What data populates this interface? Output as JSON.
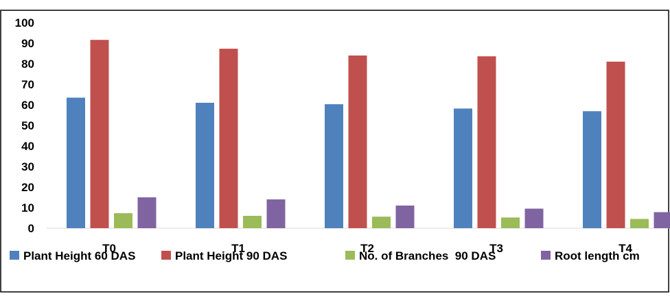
{
  "chart_data": {
    "type": "bar",
    "title": "",
    "xlabel": "",
    "ylabel": "",
    "categories": [
      "T0",
      "T1",
      "T2",
      "T3",
      "T4"
    ],
    "ylim": [
      0,
      100
    ],
    "yticks": [
      "0",
      "10",
      "20",
      "30",
      "40",
      "50",
      "60",
      "70",
      "80",
      "90",
      "100"
    ],
    "grid": false,
    "legend_position": "bottom",
    "series": [
      {
        "name": "Plant Height 60 DAS",
        "color": "#4f81bd",
        "values": [
          63.5,
          61,
          60.3,
          58.2,
          56.9
        ]
      },
      {
        "name": "Plant Height 90 DAS",
        "color": "#c0504d",
        "values": [
          91.6,
          87.3,
          84,
          83.6,
          81
        ]
      },
      {
        "name": "No. of Branches  90 DAS",
        "color": "#9bbb59",
        "values": [
          7.3,
          6,
          5.6,
          5.2,
          4.5
        ]
      },
      {
        "name": "Root length cm",
        "color": "#8064a2",
        "values": [
          15,
          14,
          11,
          9.5,
          7.8
        ]
      }
    ]
  }
}
